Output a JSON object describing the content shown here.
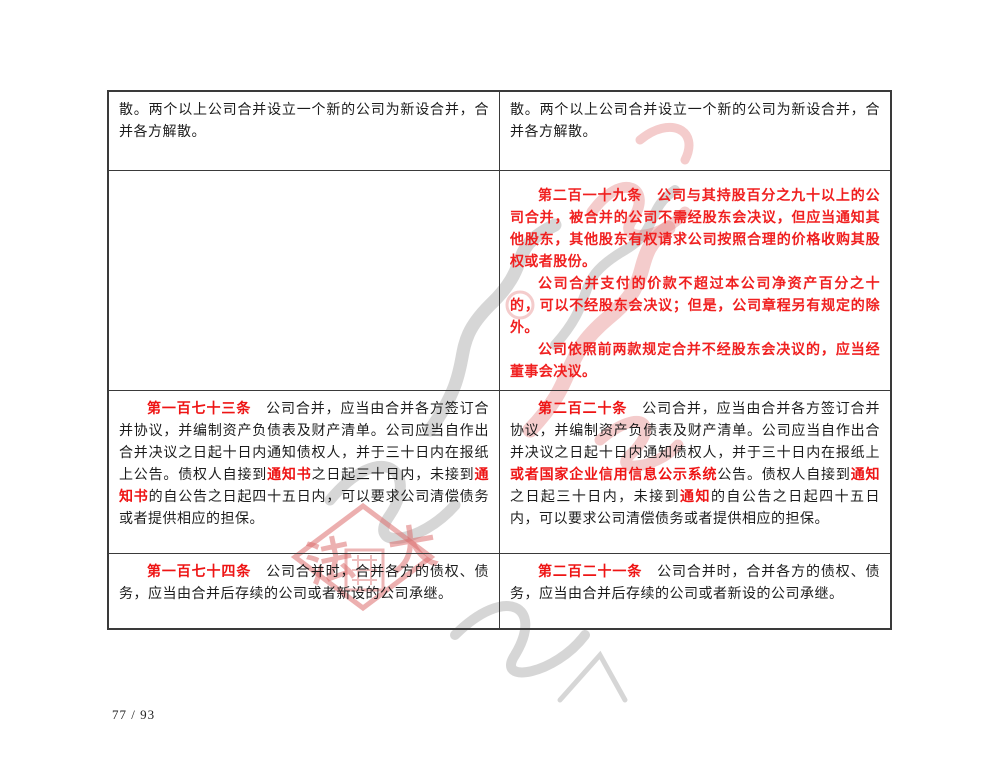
{
  "page": {
    "number_label": "77 / 93"
  },
  "colors": {
    "highlight_red": "#ee1414",
    "body_text": "#1c1c1c",
    "table_border": "#3a3a3a",
    "watermark_pink": "#e07878",
    "watermark_gray": "#777777"
  },
  "watermark": {
    "seal_characters": [
      "法",
      "大"
    ]
  },
  "table": {
    "column_roles": [
      "old-law",
      "new-law"
    ],
    "rows": [
      {
        "cells": [
          {
            "is_new_clause": false,
            "paragraphs": [
              {
                "indent": false,
                "runs": [
                  {
                    "style": "normal",
                    "text": "散。两个以上公司合并设立一个新的公司为新设合并，合并各方解散。"
                  }
                ]
              }
            ]
          },
          {
            "is_new_clause": false,
            "paragraphs": [
              {
                "indent": false,
                "runs": [
                  {
                    "style": "normal",
                    "text": "散。两个以上公司合并设立一个新的公司为新设合并，合并各方解散。"
                  }
                ]
              }
            ]
          }
        ]
      },
      {
        "cells": [
          {
            "is_new_clause": false,
            "paragraphs": []
          },
          {
            "is_new_clause": true,
            "paragraphs": [
              {
                "indent": true,
                "runs": [
                  {
                    "style": "red-bold",
                    "text": "第二百一十九条　公司与其持股百分之九十以上的公司合并，被合并的公司不需经股东会决议，但应当通知其他股东，其他股东有权请求公司按照合理的价格收购其股权或者股份。"
                  }
                ]
              },
              {
                "indent": true,
                "runs": [
                  {
                    "style": "red-bold",
                    "text": "公司合并支付的价款不超过本公司净资产百分之十的，可以不经股东会决议；但是，公司章程另有规定的除外。"
                  }
                ]
              },
              {
                "indent": true,
                "runs": [
                  {
                    "style": "red-bold",
                    "text": "公司依照前两款规定合并不经股东会决议的，应当经董事会决议。"
                  }
                ]
              }
            ]
          }
        ]
      },
      {
        "cells": [
          {
            "is_new_clause": false,
            "paragraphs": [
              {
                "indent": true,
                "runs": [
                  {
                    "style": "red-bold",
                    "text": "第一百七十三条　"
                  },
                  {
                    "style": "normal",
                    "text": "公司合并，应当由合并各方签订合并协议，并编制资产负债表及财产清单。公司应当自作出合并决议之日起十日内通知债权人，并于三十日内在报纸上公告。债权人自接到"
                  },
                  {
                    "style": "red-bold",
                    "text": "通知书"
                  },
                  {
                    "style": "normal",
                    "text": "之日起三十日内，未接到"
                  },
                  {
                    "style": "red-bold",
                    "text": "通知书"
                  },
                  {
                    "style": "normal",
                    "text": "的自公告之日起四十五日内，可以要求公司清偿债务或者提供相应的担保。"
                  }
                ]
              }
            ]
          },
          {
            "is_new_clause": false,
            "paragraphs": [
              {
                "indent": true,
                "runs": [
                  {
                    "style": "red-bold",
                    "text": "第二百二十条　"
                  },
                  {
                    "style": "normal",
                    "text": "公司合并，应当由合并各方签订合并协议，并编制资产负债表及财产清单。公司应当自作出合并决议之日起十日内通知债权人，并于三十日内在报纸上"
                  },
                  {
                    "style": "red-bold",
                    "text": "或者国家企业信用信息公示系统"
                  },
                  {
                    "style": "normal",
                    "text": "公告。债权人自接到"
                  },
                  {
                    "style": "red-bold",
                    "text": "通知"
                  },
                  {
                    "style": "normal",
                    "text": "之日起三十日内，未接到"
                  },
                  {
                    "style": "red-bold",
                    "text": "通知"
                  },
                  {
                    "style": "normal",
                    "text": "的自公告之日起四十五日内，可以要求公司清偿债务或者提供相应的担保。"
                  }
                ]
              }
            ]
          }
        ]
      },
      {
        "cells": [
          {
            "is_new_clause": false,
            "paragraphs": [
              {
                "indent": true,
                "runs": [
                  {
                    "style": "red-bold",
                    "text": "第一百七十四条　"
                  },
                  {
                    "style": "normal",
                    "text": "公司合并时，合并各方的债权、债务，应当由合并后存续的公司或者新设的公司承继。"
                  }
                ]
              }
            ]
          },
          {
            "is_new_clause": false,
            "paragraphs": [
              {
                "indent": true,
                "runs": [
                  {
                    "style": "red-bold",
                    "text": "第二百二十一条　"
                  },
                  {
                    "style": "normal",
                    "text": "公司合并时，合并各方的债权、债务，应当由合并后存续的公司或者新设的公司承继。"
                  }
                ]
              }
            ]
          }
        ]
      }
    ]
  }
}
